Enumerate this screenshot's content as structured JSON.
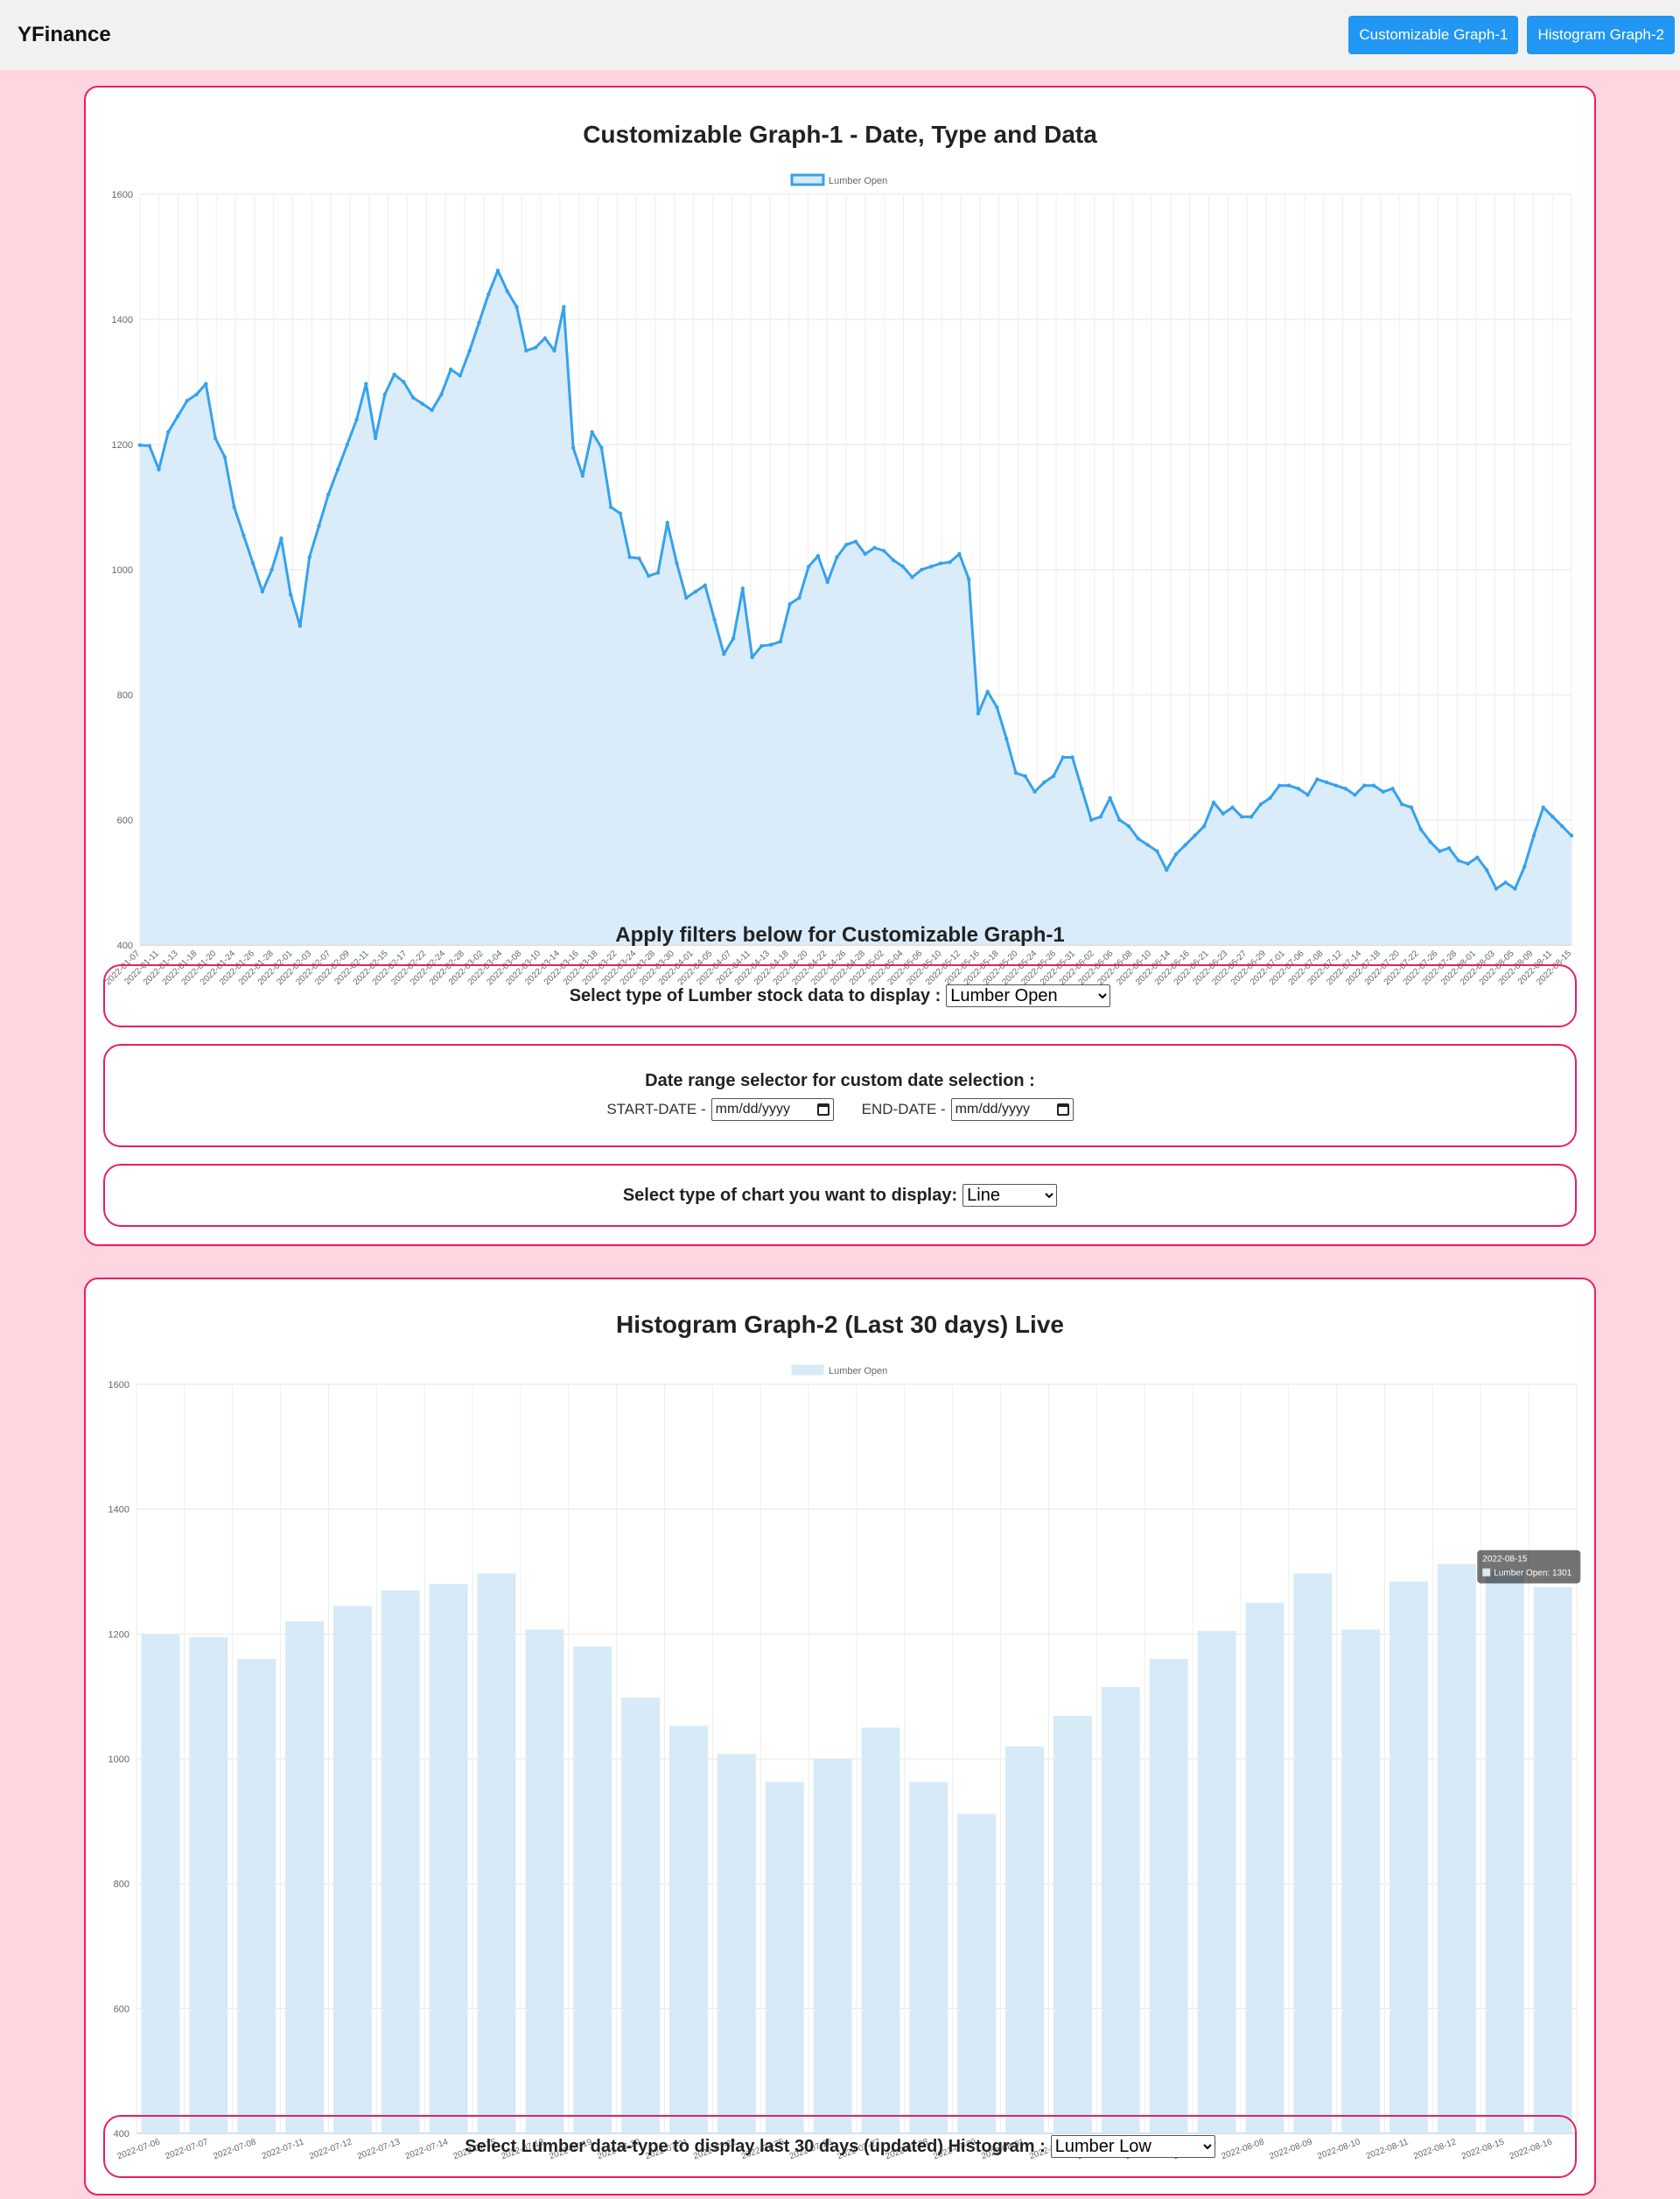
{
  "navbar": {
    "brand": "YFinance",
    "buttons": [
      "Customizable Graph-1",
      "Histogram Graph-2"
    ],
    "accent_color": "#2196f3"
  },
  "card1": {
    "title": "Customizable Graph-1 - Date, Type and Data",
    "filters_title": "Apply filters below for Customizable Graph-1",
    "type_filter": {
      "label": "Select type of Lumber stock data to display :",
      "selected": "Lumber Open"
    },
    "date_filter": {
      "label": "Date range selector for custom date selection :",
      "start_label": "START-DATE -",
      "start_placeholder": "mm/dd/yyyy",
      "end_label": "END-DATE -",
      "end_placeholder": "mm/dd/yyyy",
      "icon": "calendar-icon"
    },
    "chart_type_filter": {
      "label": "Select type of chart you want to display:",
      "selected": "Line"
    }
  },
  "card2": {
    "title": "Histogram Graph-2 (Last 30 days) Live",
    "type_filter": {
      "label": "Select Lumber data-type to display last 30 days (updated) Histogram :",
      "selected": "Lumber Low"
    },
    "tooltip": {
      "date": "2022-08-15",
      "text": "Lumber Open: 1301"
    }
  },
  "colors": {
    "border": "#e91e63",
    "line": "#36a2eb",
    "fill": "#d6eaf8",
    "page_bg": "#ffd6e0"
  },
  "chart_data": [
    {
      "type": "line",
      "legend": [
        "Lumber Open"
      ],
      "legend_position": "top",
      "ylim": [
        400,
        1600
      ],
      "yticks": [
        400,
        600,
        800,
        1000,
        1200,
        1400,
        1600
      ],
      "grid": true,
      "x_labels": [
        "2022-01-07",
        "2022-01-11",
        "2022-01-13",
        "2022-01-18",
        "2022-01-20",
        "2022-01-24",
        "2022-01-26",
        "2022-01-28",
        "2022-02-01",
        "2022-02-03",
        "2022-02-07",
        "2022-02-09",
        "2022-02-11",
        "2022-02-15",
        "2022-02-17",
        "2022-02-22",
        "2022-02-24",
        "2022-02-28",
        "2022-03-02",
        "2022-03-04",
        "2022-03-08",
        "2022-03-10",
        "2022-03-14",
        "2022-03-16",
        "2022-03-18",
        "2022-03-22",
        "2022-03-24",
        "2022-03-28",
        "2022-03-30",
        "2022-04-01",
        "2022-04-05",
        "2022-04-07",
        "2022-04-11",
        "2022-04-13",
        "2022-04-18",
        "2022-04-20",
        "2022-04-22",
        "2022-04-26",
        "2022-04-28",
        "2022-05-02",
        "2022-05-04",
        "2022-05-06",
        "2022-05-10",
        "2022-05-12",
        "2022-05-16",
        "2022-05-18",
        "2022-05-20",
        "2022-05-24",
        "2022-05-26",
        "2022-05-31",
        "2022-06-02",
        "2022-06-06",
        "2022-06-08",
        "2022-06-10",
        "2022-06-14",
        "2022-06-16",
        "2022-06-21",
        "2022-06-23",
        "2022-06-27",
        "2022-06-29",
        "2022-07-01",
        "2022-07-06",
        "2022-07-08",
        "2022-07-12",
        "2022-07-14",
        "2022-07-18",
        "2022-07-20",
        "2022-07-22",
        "2022-07-26",
        "2022-07-28",
        "2022-08-01",
        "2022-08-03",
        "2022-08-05",
        "2022-08-09",
        "2022-08-11",
        "2022-08-15"
      ],
      "series": [
        {
          "name": "Lumber Open",
          "values": [
            1199,
            1198,
            1160,
            1220,
            1245,
            1270,
            1280,
            1297,
            1210,
            1180,
            1100,
            1055,
            1010,
            965,
            1000,
            1050,
            960,
            910,
            1020,
            1070,
            1120,
            1160,
            1200,
            1240,
            1297,
            1210,
            1280,
            1312,
            1300,
            1275,
            1265,
            1255,
            1280,
            1320,
            1310,
            1350,
            1395,
            1440,
            1478,
            1445,
            1420,
            1350,
            1355,
            1370,
            1350,
            1420,
            1195,
            1150,
            1220,
            1195,
            1100,
            1090,
            1020,
            1018,
            990,
            995,
            1075,
            1010,
            955,
            965,
            975,
            920,
            865,
            890,
            970,
            860,
            878,
            880,
            885,
            945,
            955,
            1005,
            1022,
            980,
            1020,
            1040,
            1045,
            1025,
            1035,
            1030,
            1015,
            1005,
            988,
            1000,
            1005,
            1010,
            1012,
            1025,
            985,
            770,
            805,
            780,
            730,
            675,
            670,
            645,
            660,
            670,
            700,
            700,
            650,
            600,
            605,
            635,
            600,
            590,
            570,
            560,
            550,
            520,
            545,
            560,
            575,
            590,
            628,
            610,
            620,
            605,
            605,
            625,
            635,
            655,
            655,
            650,
            640,
            665,
            660,
            655,
            650,
            640,
            655,
            655,
            645,
            650,
            625,
            620,
            585,
            565,
            550,
            555,
            535,
            530,
            540,
            520,
            490,
            500,
            490,
            525,
            575,
            620,
            605,
            590,
            575
          ]
        }
      ]
    },
    {
      "type": "bar",
      "legend": [
        "Lumber Open"
      ],
      "legend_position": "top",
      "ylim": [
        400,
        1600
      ],
      "yticks": [
        400,
        600,
        800,
        1000,
        1200,
        1400,
        1600
      ],
      "grid": true,
      "categories": [
        "2022-07-06",
        "2022-07-07",
        "2022-07-08",
        "2022-07-11",
        "2022-07-12",
        "2022-07-13",
        "2022-07-14",
        "2022-07-15",
        "2022-07-18",
        "2022-07-19",
        "2022-07-20",
        "2022-07-21",
        "2022-07-22",
        "2022-07-25",
        "2022-07-26",
        "2022-07-27",
        "2022-07-28",
        "2022-07-29",
        "2022-08-01",
        "2022-08-02",
        "2022-08-03",
        "2022-08-04",
        "2022-08-05",
        "2022-08-08",
        "2022-08-09",
        "2022-08-10",
        "2022-08-11",
        "2022-08-12",
        "2022-08-15",
        "2022-08-16"
      ],
      "series": [
        {
          "name": "Lumber Open",
          "values": [
            1199,
            1195,
            1160,
            1220,
            1245,
            1270,
            1280,
            1297,
            1207,
            1180,
            1098,
            1053,
            1008,
            963,
            1000,
            1050,
            963,
            912,
            1020,
            1069,
            1115,
            1160,
            1205,
            1250,
            1297,
            1207,
            1284,
            1312,
            1301,
            1275
          ]
        }
      ]
    }
  ]
}
